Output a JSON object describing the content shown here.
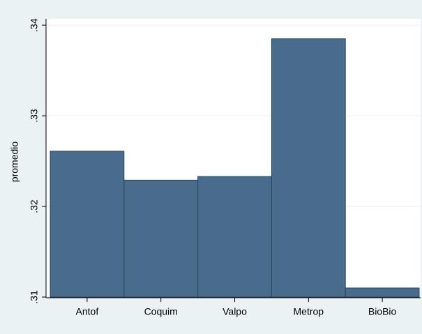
{
  "chart_data": {
    "type": "bar",
    "categories": [
      "Antof",
      "Coquim",
      "Valpo",
      "Metrop",
      "BioBio"
    ],
    "values": [
      0.3261,
      0.3229,
      0.3233,
      0.3385,
      0.311
    ],
    "color": "#4a6c8c",
    "y_label": "promedio",
    "ylim": [
      0.31,
      0.3407
    ],
    "yticks": [
      {
        "value": 0.31,
        "label": ".31"
      },
      {
        "value": 0.32,
        "label": ".32"
      },
      {
        "value": 0.33,
        "label": ".33"
      },
      {
        "value": 0.34,
        "label": ".34"
      }
    ],
    "grid": true
  }
}
